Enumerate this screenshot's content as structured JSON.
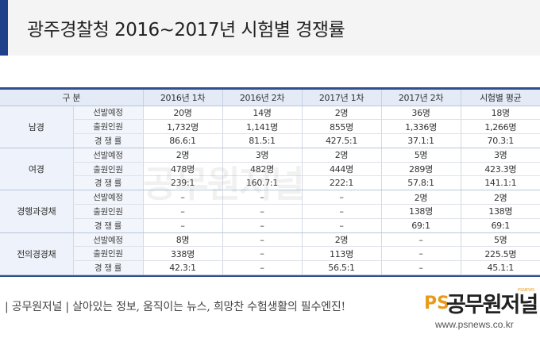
{
  "header": {
    "title": "광주경찰청 2016~2017년 시험별 경쟁률"
  },
  "table": {
    "headers": [
      "구 분",
      "2016년 1차",
      "2016년 2차",
      "2017년 1차",
      "2017년 2차",
      "시험별 평균"
    ],
    "groups": [
      {
        "name": "남경",
        "rows": [
          {
            "label": "선발예정",
            "values": [
              "20명",
              "14명",
              "2명",
              "36명",
              "18명"
            ]
          },
          {
            "label": "출원인원",
            "values": [
              "1,732명",
              "1,141명",
              "855명",
              "1,336명",
              "1,266명"
            ]
          },
          {
            "label": "경 쟁 률",
            "values": [
              "86.6:1",
              "81.5:1",
              "427.5:1",
              "37.1:1",
              "70.3:1"
            ]
          }
        ]
      },
      {
        "name": "여경",
        "rows": [
          {
            "label": "선발예정",
            "values": [
              "2명",
              "3명",
              "2명",
              "5명",
              "3명"
            ]
          },
          {
            "label": "출원인원",
            "values": [
              "478명",
              "482명",
              "444명",
              "289명",
              "423.3명"
            ]
          },
          {
            "label": "경 쟁 률",
            "values": [
              "239:1",
              "160.7:1",
              "222:1",
              "57.8:1",
              "141.1:1"
            ]
          }
        ]
      },
      {
        "name": "경행과경채",
        "rows": [
          {
            "label": "선발예정",
            "values": [
              "–",
              "–",
              "–",
              "2명",
              "2명"
            ]
          },
          {
            "label": "출원인원",
            "values": [
              "–",
              "–",
              "–",
              "138명",
              "138명"
            ]
          },
          {
            "label": "경 쟁 률",
            "values": [
              "–",
              "–",
              "–",
              "69:1",
              "69:1"
            ]
          }
        ]
      },
      {
        "name": "전의경경채",
        "rows": [
          {
            "label": "선발예정",
            "values": [
              "8명",
              "–",
              "2명",
              "–",
              "5명"
            ]
          },
          {
            "label": "출원인원",
            "values": [
              "338명",
              "–",
              "113명",
              "–",
              "225.5명"
            ]
          },
          {
            "label": "경 쟁 률",
            "values": [
              "42.3:1",
              "–",
              "56.5:1",
              "–",
              "45.1:1"
            ]
          }
        ]
      }
    ]
  },
  "watermark": {
    "text": "공무원저널"
  },
  "footer": {
    "slogan": "| 공무원저널 | 살아있는 정보, 움직이는 뉴스, 희망찬 수험생활의 필수엔진!",
    "logo_ps": "PS",
    "logo_name": "공무원저널",
    "logo_sub": "PSNEWS",
    "url": "www.psnews.co.kr"
  },
  "colors": {
    "accent": "#1f3f8a",
    "header_cell_bg": "#e4ebf7",
    "logo_orange": "#e89a1a"
  }
}
